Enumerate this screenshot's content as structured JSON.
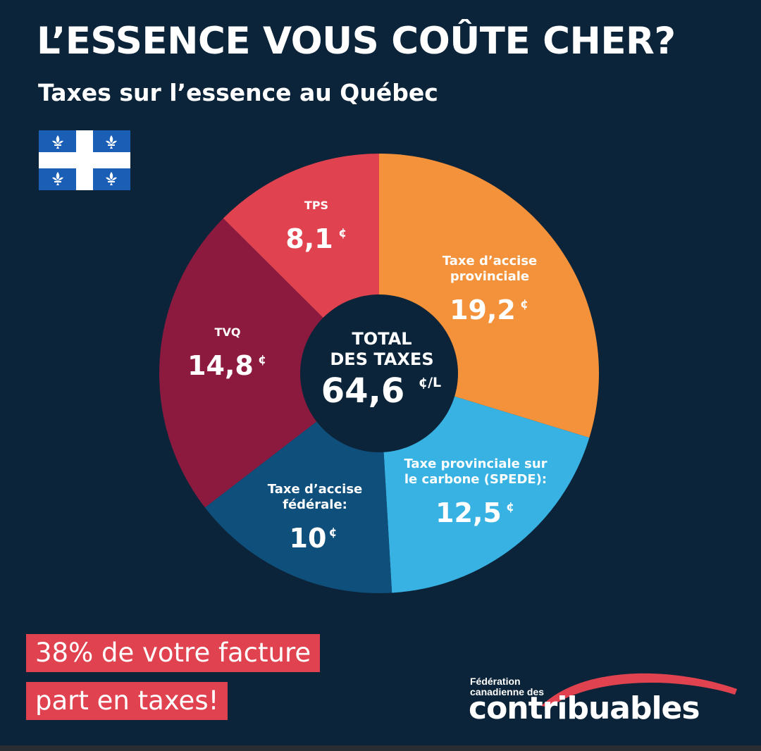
{
  "header": {
    "title": "L’ESSENCE VOUS COÛTE CHER?",
    "subtitle": "Taxes sur l’essence au Québec"
  },
  "colors": {
    "background": "#0c2439",
    "accent_red": "#e0434f",
    "flag_blue": "#1a5eb5"
  },
  "chart_data": {
    "type": "pie",
    "center": {
      "line1": "TOTAL",
      "line2": "DES TAXES",
      "value": "64,6",
      "unit": "¢/L"
    },
    "total": 64.6,
    "slices": [
      {
        "label_lines": [
          "Taxe d’accise",
          "provinciale"
        ],
        "value": 19.2,
        "value_text": "19,2",
        "unit": "¢",
        "color": "#f3923a"
      },
      {
        "label_lines": [
          "Taxe provinciale sur",
          "le carbone (SPEDE):"
        ],
        "value": 12.5,
        "value_text": "12,5",
        "unit": "¢",
        "color": "#38b2e3"
      },
      {
        "label_lines": [
          "Taxe d’accise",
          "fédérale:"
        ],
        "value": 10,
        "value_text": "10",
        "unit": "¢",
        "color": "#0f4f7c"
      },
      {
        "label_lines": [
          "TVQ"
        ],
        "value": 14.8,
        "value_text": "14,8",
        "unit": "¢",
        "color": "#8b1a3e"
      },
      {
        "label_lines": [
          "TPS"
        ],
        "value": 8.1,
        "value_text": "8,1",
        "unit": "¢",
        "color": "#e0434f"
      }
    ]
  },
  "callout": {
    "line1": "38% de votre facture",
    "line2": "part en taxes!"
  },
  "logo": {
    "line1": "Fédération",
    "line2": "canadienne des",
    "wordmark": "contribuables"
  }
}
